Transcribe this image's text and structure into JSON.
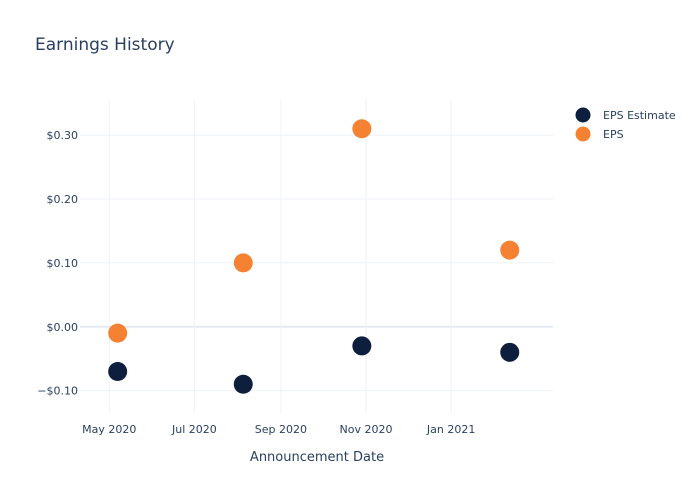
{
  "chart_data": {
    "type": "scatter",
    "title": "Earnings History",
    "xlabel": "Announcement Date",
    "ylabel": "",
    "x_ticks": [
      {
        "date": "2020-05-01",
        "label": "May 2020"
      },
      {
        "date": "2020-07-01",
        "label": "Jul 2020"
      },
      {
        "date": "2020-09-01",
        "label": "Sep 2020"
      },
      {
        "date": "2020-11-01",
        "label": "Nov 2020"
      },
      {
        "date": "2021-01-01",
        "label": "Jan 2021"
      }
    ],
    "xlim": [
      "2020-04-10",
      "2021-03-15"
    ],
    "y_ticks": [
      {
        "value": -0.1,
        "label": "−$0.10"
      },
      {
        "value": 0.0,
        "label": "$0.00"
      },
      {
        "value": 0.1,
        "label": "$0.10"
      },
      {
        "value": 0.2,
        "label": "$0.20"
      },
      {
        "value": 0.3,
        "label": "$0.30"
      }
    ],
    "ylim": [
      -0.135,
      0.355
    ],
    "grid": true,
    "legend_position": "top-right",
    "series": [
      {
        "name": "EPS Estimate",
        "color": "#0d1f3c",
        "points": [
          {
            "x": "2020-05-07",
            "y": -0.07
          },
          {
            "x": "2020-08-05",
            "y": -0.09
          },
          {
            "x": "2020-10-29",
            "y": -0.03
          },
          {
            "x": "2021-02-12",
            "y": -0.04
          }
        ]
      },
      {
        "name": "EPS",
        "color": "#f58233",
        "points": [
          {
            "x": "2020-05-07",
            "y": -0.01
          },
          {
            "x": "2020-08-05",
            "y": 0.1
          },
          {
            "x": "2020-10-29",
            "y": 0.31
          },
          {
            "x": "2021-02-12",
            "y": 0.12
          }
        ]
      }
    ]
  }
}
